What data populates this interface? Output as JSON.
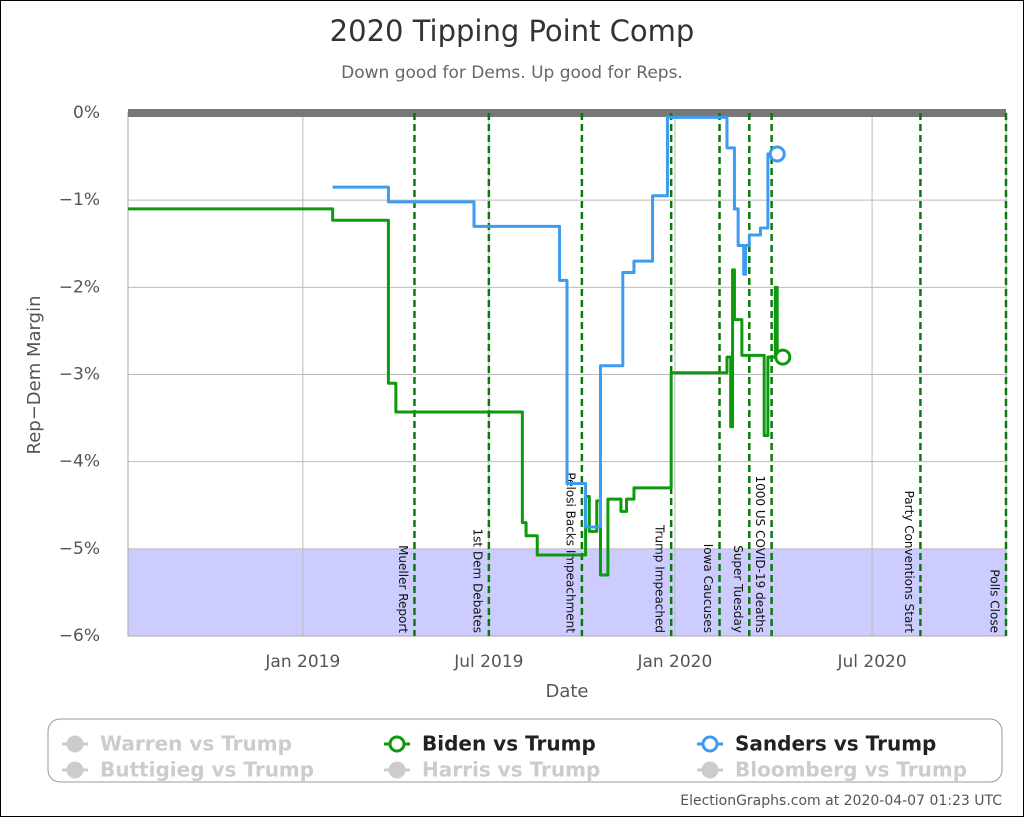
{
  "chart_data": {
    "type": "line",
    "title": "2020 Tipping Point Comp",
    "subtitle": "Down good for Dems. Up good for Reps.",
    "x_label": "Date",
    "y_label": "Rep−Dem Margin",
    "credit": "ElectionGraphs.com at 2020-04-07 01:23 UTC",
    "xlim": [
      2018.53,
      2020.89
    ],
    "ylim": [
      -6,
      0
    ],
    "xticks": [
      {
        "value": 2019.0,
        "label": "Jan 2019"
      },
      {
        "value": 2019.5,
        "label": "Jul 2019"
      },
      {
        "value": 2020.0,
        "label": "Jan 2020"
      },
      {
        "value": 2020.53,
        "label": "Jul 2020"
      }
    ],
    "yticks": [
      {
        "value": 0,
        "label": "0%"
      },
      {
        "value": -1,
        "label": "−1%"
      },
      {
        "value": -2,
        "label": "−2%"
      },
      {
        "value": -3,
        "label": "−3%"
      },
      {
        "value": -4,
        "label": "−4%"
      },
      {
        "value": -5,
        "label": "−5%"
      },
      {
        "value": -6,
        "label": "−6%"
      }
    ],
    "grid": true,
    "band": {
      "range": [
        -6,
        -5
      ],
      "color": "#ccccff"
    },
    "events": [
      {
        "x": 2019.3,
        "label": "Mueller Report"
      },
      {
        "x": 2019.5,
        "label": "1st Dem Debates"
      },
      {
        "x": 2019.75,
        "label": "Pelosi Backs Impeachment"
      },
      {
        "x": 2019.99,
        "label": "Trump Impeached"
      },
      {
        "x": 2020.12,
        "label": "Iowa Caucuses"
      },
      {
        "x": 2020.2,
        "label": "Super Tuesday"
      },
      {
        "x": 2020.26,
        "label": "1000 US COVID-19 deaths"
      },
      {
        "x": 2020.66,
        "label": "Party Conventions Start"
      },
      {
        "x": 2020.89,
        "label": "Polls Close"
      }
    ],
    "series": [
      {
        "name": "Warren vs Trump",
        "color": "#cccccc",
        "visible": false
      },
      {
        "name": "Biden vs Trump",
        "color": "#0e9a0e",
        "visible": true,
        "x": [
          2018.53,
          2019.08,
          2019.08,
          2019.23,
          2019.23,
          2019.25,
          2019.25,
          2019.59,
          2019.59,
          2019.6,
          2019.6,
          2019.63,
          2019.63,
          2019.76,
          2019.76,
          2019.77,
          2019.77,
          2019.79,
          2019.79,
          2019.8,
          2019.8,
          2019.82,
          2019.82,
          2019.855,
          2019.855,
          2019.87,
          2019.87,
          2019.89,
          2019.89,
          2019.99,
          2019.99,
          2020.14,
          2020.14,
          2020.15,
          2020.15,
          2020.155,
          2020.155,
          2020.16,
          2020.16,
          2020.18,
          2020.18,
          2020.24,
          2020.24,
          2020.25,
          2020.25,
          2020.27,
          2020.27,
          2020.275,
          2020.275,
          2020.29
        ],
        "values": [
          -1.1,
          -1.1,
          -1.23,
          -1.23,
          -3.1,
          -3.1,
          -3.43,
          -3.43,
          -4.7,
          -4.7,
          -4.85,
          -4.85,
          -5.07,
          -5.07,
          -4.4,
          -4.4,
          -4.8,
          -4.8,
          -4.45,
          -4.45,
          -5.3,
          -5.3,
          -4.43,
          -4.43,
          -4.57,
          -4.57,
          -4.43,
          -4.43,
          -4.3,
          -4.3,
          -2.98,
          -2.98,
          -2.8,
          -2.8,
          -3.6,
          -3.6,
          -1.8,
          -1.8,
          -2.37,
          -2.37,
          -2.78,
          -2.78,
          -3.7,
          -3.7,
          -2.8,
          -2.8,
          -2.0,
          -2.0,
          -2.8,
          -2.8
        ]
      },
      {
        "name": "Sanders vs Trump",
        "color": "#3d9bf0",
        "visible": true,
        "x": [
          2019.08,
          2019.23,
          2019.23,
          2019.46,
          2019.46,
          2019.69,
          2019.69,
          2019.71,
          2019.71,
          2019.76,
          2019.76,
          2019.8,
          2019.8,
          2019.86,
          2019.86,
          2019.89,
          2019.89,
          2019.94,
          2019.94,
          2019.98,
          2019.98,
          2020.14,
          2020.14,
          2020.16,
          2020.16,
          2020.17,
          2020.17,
          2020.185,
          2020.185,
          2020.19,
          2020.19,
          2020.2,
          2020.2,
          2020.23,
          2020.23,
          2020.25,
          2020.25,
          2020.275
        ],
        "values": [
          -0.85,
          -0.85,
          -1.02,
          -1.02,
          -1.3,
          -1.3,
          -1.92,
          -1.92,
          -4.25,
          -4.25,
          -4.75,
          -4.75,
          -2.9,
          -2.9,
          -1.83,
          -1.83,
          -1.7,
          -1.7,
          -0.95,
          -0.95,
          -0.05,
          -0.05,
          -0.4,
          -0.4,
          -1.1,
          -1.1,
          -1.52,
          -1.52,
          -1.85,
          -1.85,
          -1.52,
          -1.52,
          -1.4,
          -1.4,
          -1.32,
          -1.32,
          -0.47,
          -0.47
        ]
      },
      {
        "name": "Buttigieg vs Trump",
        "color": "#cccccc",
        "visible": false
      },
      {
        "name": "Harris vs Trump",
        "color": "#cccccc",
        "visible": false
      },
      {
        "name": "Bloomberg vs Trump",
        "color": "#cccccc",
        "visible": false
      }
    ]
  }
}
